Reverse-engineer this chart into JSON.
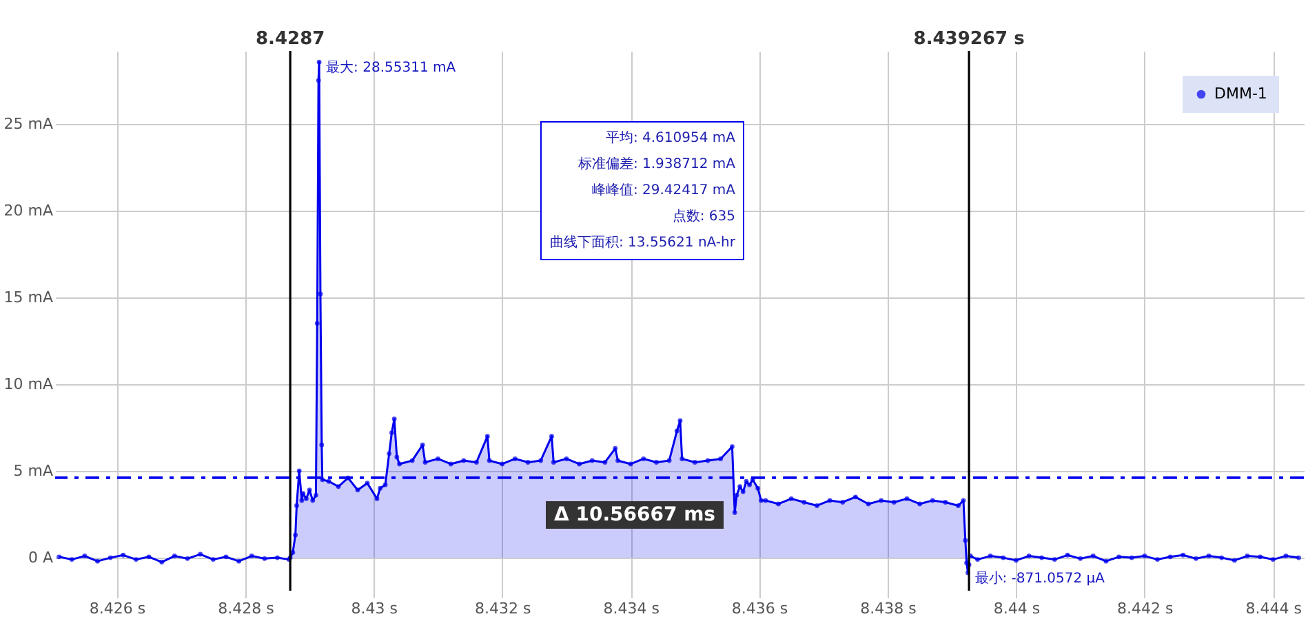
{
  "chart_data": {
    "type": "line",
    "marker": "circle",
    "grid": true,
    "legend": "top right",
    "xlim": [
      8.42504,
      8.44448
    ],
    "xticks": [
      {
        "value": 8.426,
        "label": "8.426 s"
      },
      {
        "value": 8.428,
        "label": "8.428 s"
      },
      {
        "value": 8.43,
        "label": "8.43 s"
      },
      {
        "value": 8.432,
        "label": "8.432 s"
      },
      {
        "value": 8.434,
        "label": "8.434 s"
      },
      {
        "value": 8.436,
        "label": "8.436 s"
      },
      {
        "value": 8.438,
        "label": "8.438 s"
      },
      {
        "value": 8.44,
        "label": "8.44 s"
      },
      {
        "value": 8.442,
        "label": "8.442 s"
      },
      {
        "value": 8.444,
        "label": "8.444 s"
      }
    ],
    "ylim": [
      -1.9,
      29.2
    ],
    "yticks": [
      {
        "value": 0,
        "label": "0 A"
      },
      {
        "value": 5,
        "label": "5 mA"
      },
      {
        "value": 10,
        "label": "10 mA"
      },
      {
        "value": 15,
        "label": "15 mA"
      },
      {
        "value": 20,
        "label": "20 mA"
      },
      {
        "value": 25,
        "label": "25 mA"
      }
    ],
    "series": [
      {
        "name": "DMM-1",
        "color": "#0000ee",
        "x": [
          8.4251,
          8.4253,
          8.4255,
          8.4257,
          8.4259,
          8.4261,
          8.4263,
          8.4265,
          8.4267,
          8.4269,
          8.4271,
          8.4273,
          8.4275,
          8.4277,
          8.4279,
          8.4281,
          8.4283,
          8.4285,
          8.42868
        ],
        "values": [
          0.05,
          -0.1,
          0.1,
          -0.2,
          0.0,
          0.15,
          -0.1,
          0.05,
          -0.25,
          0.1,
          -0.05,
          0.2,
          -0.1,
          0.05,
          -0.2,
          0.1,
          -0.05,
          0.0,
          -0.1
        ]
      },
      {
        "type": "area",
        "color": "#0000ee",
        "x": [
          8.4287,
          8.42874,
          8.42878,
          8.4288,
          8.42884,
          8.42888,
          8.4289,
          8.42895,
          8.429,
          8.42905,
          8.4291,
          8.42912,
          8.42914,
          8.42915,
          8.42917,
          8.42919,
          8.4292,
          8.4293,
          8.42945,
          8.4296,
          8.42975,
          8.4299,
          8.43005,
          8.4301,
          8.43018,
          8.43024,
          8.43028,
          8.43032,
          8.43036,
          8.4304,
          8.4306,
          8.43076,
          8.4308,
          8.431,
          8.4312,
          8.4314,
          8.4316,
          8.43177,
          8.4318,
          8.432,
          8.4322,
          8.4324,
          8.4326,
          8.43277,
          8.4328,
          8.433,
          8.4332,
          8.4334,
          8.4336,
          8.43376,
          8.4338,
          8.434,
          8.4342,
          8.4344,
          8.4346,
          8.43472,
          8.43477,
          8.4348,
          8.435,
          8.4352,
          8.4354,
          8.43558,
          8.43562,
          8.43565,
          8.4357,
          8.43575,
          8.4358,
          8.43585,
          8.4359,
          8.43598,
          8.43603,
          8.4361,
          8.4363,
          8.4365,
          8.4367,
          8.4369,
          8.4371,
          8.4373,
          8.4375,
          8.4377,
          8.4379,
          8.4381,
          8.4383,
          8.4385,
          8.4387,
          8.4389,
          8.4391,
          8.43918,
          8.43921,
          8.43923,
          8.43925,
          8.439267
        ],
        "values": [
          0.0,
          0.3,
          1.3,
          3.0,
          5.0,
          3.3,
          3.7,
          3.4,
          3.9,
          3.3,
          3.6,
          13.5,
          27.5,
          28.55311,
          15.2,
          6.5,
          4.5,
          4.4,
          4.1,
          4.6,
          3.9,
          4.3,
          3.4,
          4.0,
          4.2,
          6.0,
          7.2,
          8.0,
          5.8,
          5.4,
          5.6,
          6.5,
          5.5,
          5.7,
          5.4,
          5.6,
          5.5,
          7.0,
          5.6,
          5.4,
          5.7,
          5.5,
          5.6,
          7.0,
          5.5,
          5.7,
          5.4,
          5.6,
          5.5,
          6.3,
          5.6,
          5.4,
          5.7,
          5.5,
          5.6,
          7.3,
          7.9,
          5.7,
          5.5,
          5.6,
          5.7,
          6.4,
          2.6,
          3.6,
          4.1,
          3.8,
          4.4,
          4.2,
          4.5,
          4.0,
          3.3,
          3.3,
          3.1,
          3.4,
          3.2,
          3.0,
          3.3,
          3.2,
          3.5,
          3.1,
          3.3,
          3.2,
          3.4,
          3.1,
          3.3,
          3.2,
          3.0,
          3.3,
          1.0,
          -0.3,
          -0.8710572,
          -0.4
        ]
      },
      {
        "color": "#0000ee",
        "x": [
          8.43929,
          8.4394,
          8.4396,
          8.4398,
          8.44,
          8.4402,
          8.4404,
          8.4406,
          8.4408,
          8.441,
          8.4412,
          8.4414,
          8.4416,
          8.4418,
          8.442,
          8.4422,
          8.4424,
          8.4426,
          8.4428,
          8.443,
          8.4432,
          8.4434,
          8.4436,
          8.4438,
          8.444,
          8.4442,
          8.4444
        ],
        "values": [
          0.1,
          -0.1,
          0.1,
          0.0,
          -0.15,
          0.1,
          0.0,
          -0.1,
          0.15,
          -0.05,
          0.1,
          -0.2,
          0.05,
          0.0,
          0.1,
          -0.1,
          0.05,
          0.15,
          -0.05,
          0.1,
          0.0,
          -0.15,
          0.1,
          0.05,
          -0.1,
          0.1,
          0.0
        ]
      }
    ],
    "ref_lines": [
      {
        "axis": "x",
        "value": 8.4287,
        "label": "8.4287",
        "color": "#000000",
        "line_style": "solid"
      },
      {
        "axis": "x",
        "value": 8.439267,
        "label": "8.439267 s",
        "color": "#000000",
        "line_style": "solid"
      },
      {
        "axis": "y",
        "value": 4.610954,
        "color": "#0000ee",
        "line_style": "dashed"
      }
    ],
    "annotations": [
      {
        "text": "最大: 28.55311 mA",
        "x": 8.42915,
        "y": 28.55311
      },
      {
        "text": "最小: -871.0572 µA",
        "x": 8.43925,
        "y": -0.8710572
      },
      "Δ 10.56667 ms",
      "平均: 4.610954 mA",
      "标准偏差: 1.938712 mA",
      "峰峰值: 29.42417 mA",
      "点数: 635",
      "曲线下面积: 13.55621 nA-hr"
    ]
  }
}
